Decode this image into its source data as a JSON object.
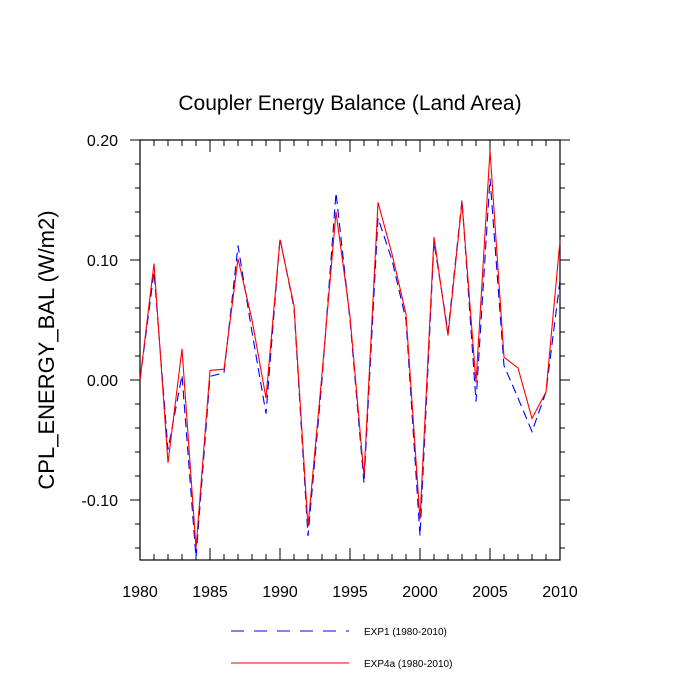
{
  "chart_data": {
    "type": "line",
    "title": "Coupler Energy Balance (Land Area)",
    "xlabel": "",
    "ylabel": "CPL_ENERGY_BAL  (W/m2)",
    "xlim": [
      1980,
      2010
    ],
    "ylim": [
      -0.15,
      0.2
    ],
    "x_ticks": [
      1980,
      1985,
      1990,
      1995,
      2000,
      2005,
      2010
    ],
    "x_tick_labels": [
      "1980",
      "1985",
      "1990",
      "1995",
      "2000",
      "2005",
      "2010"
    ],
    "y_ticks": [
      -0.1,
      0.0,
      0.1,
      0.2
    ],
    "y_tick_labels": [
      "-0.10",
      "0.00",
      "0.10",
      "0.20"
    ],
    "x": [
      1980,
      1981,
      1982,
      1983,
      1984,
      1985,
      1986,
      1987,
      1988,
      1989,
      1990,
      1991,
      1992,
      1993,
      1994,
      1995,
      1996,
      1997,
      1998,
      1999,
      2000,
      2001,
      2002,
      2003,
      2004,
      2005,
      2006,
      2007,
      2008,
      2009,
      2010
    ],
    "series": [
      {
        "name": "EXP1 (1980-2010)",
        "color": "#0000ff",
        "style": "dashed",
        "values": [
          0.0,
          0.09,
          -0.058,
          0.004,
          -0.148,
          0.003,
          0.006,
          0.112,
          0.04,
          -0.028,
          0.118,
          0.06,
          -0.13,
          0.0,
          0.156,
          0.05,
          -0.086,
          0.135,
          0.1,
          0.05,
          -0.13,
          0.115,
          0.04,
          0.15,
          -0.018,
          0.168,
          0.012,
          -0.015,
          -0.043,
          -0.01,
          0.083
        ]
      },
      {
        "name": "EXP4a (1980-2010)",
        "color": "#ff0000",
        "style": "solid",
        "values": [
          0.0,
          0.097,
          -0.069,
          0.026,
          -0.14,
          0.008,
          0.009,
          0.101,
          0.05,
          -0.015,
          0.117,
          0.062,
          -0.122,
          0.005,
          0.14,
          0.053,
          -0.08,
          0.148,
          0.105,
          0.055,
          -0.116,
          0.119,
          0.037,
          0.148,
          -0.002,
          0.191,
          0.019,
          0.01,
          -0.032,
          -0.01,
          0.116
        ]
      }
    ],
    "legend": [
      {
        "label": "EXP1 (1980-2010)",
        "color": "#0000ff",
        "style": "dashed"
      },
      {
        "label": "EXP4a (1980-2010)",
        "color": "#ff0000",
        "style": "solid"
      }
    ],
    "legend_position": "bottom-center",
    "grid": false
  }
}
